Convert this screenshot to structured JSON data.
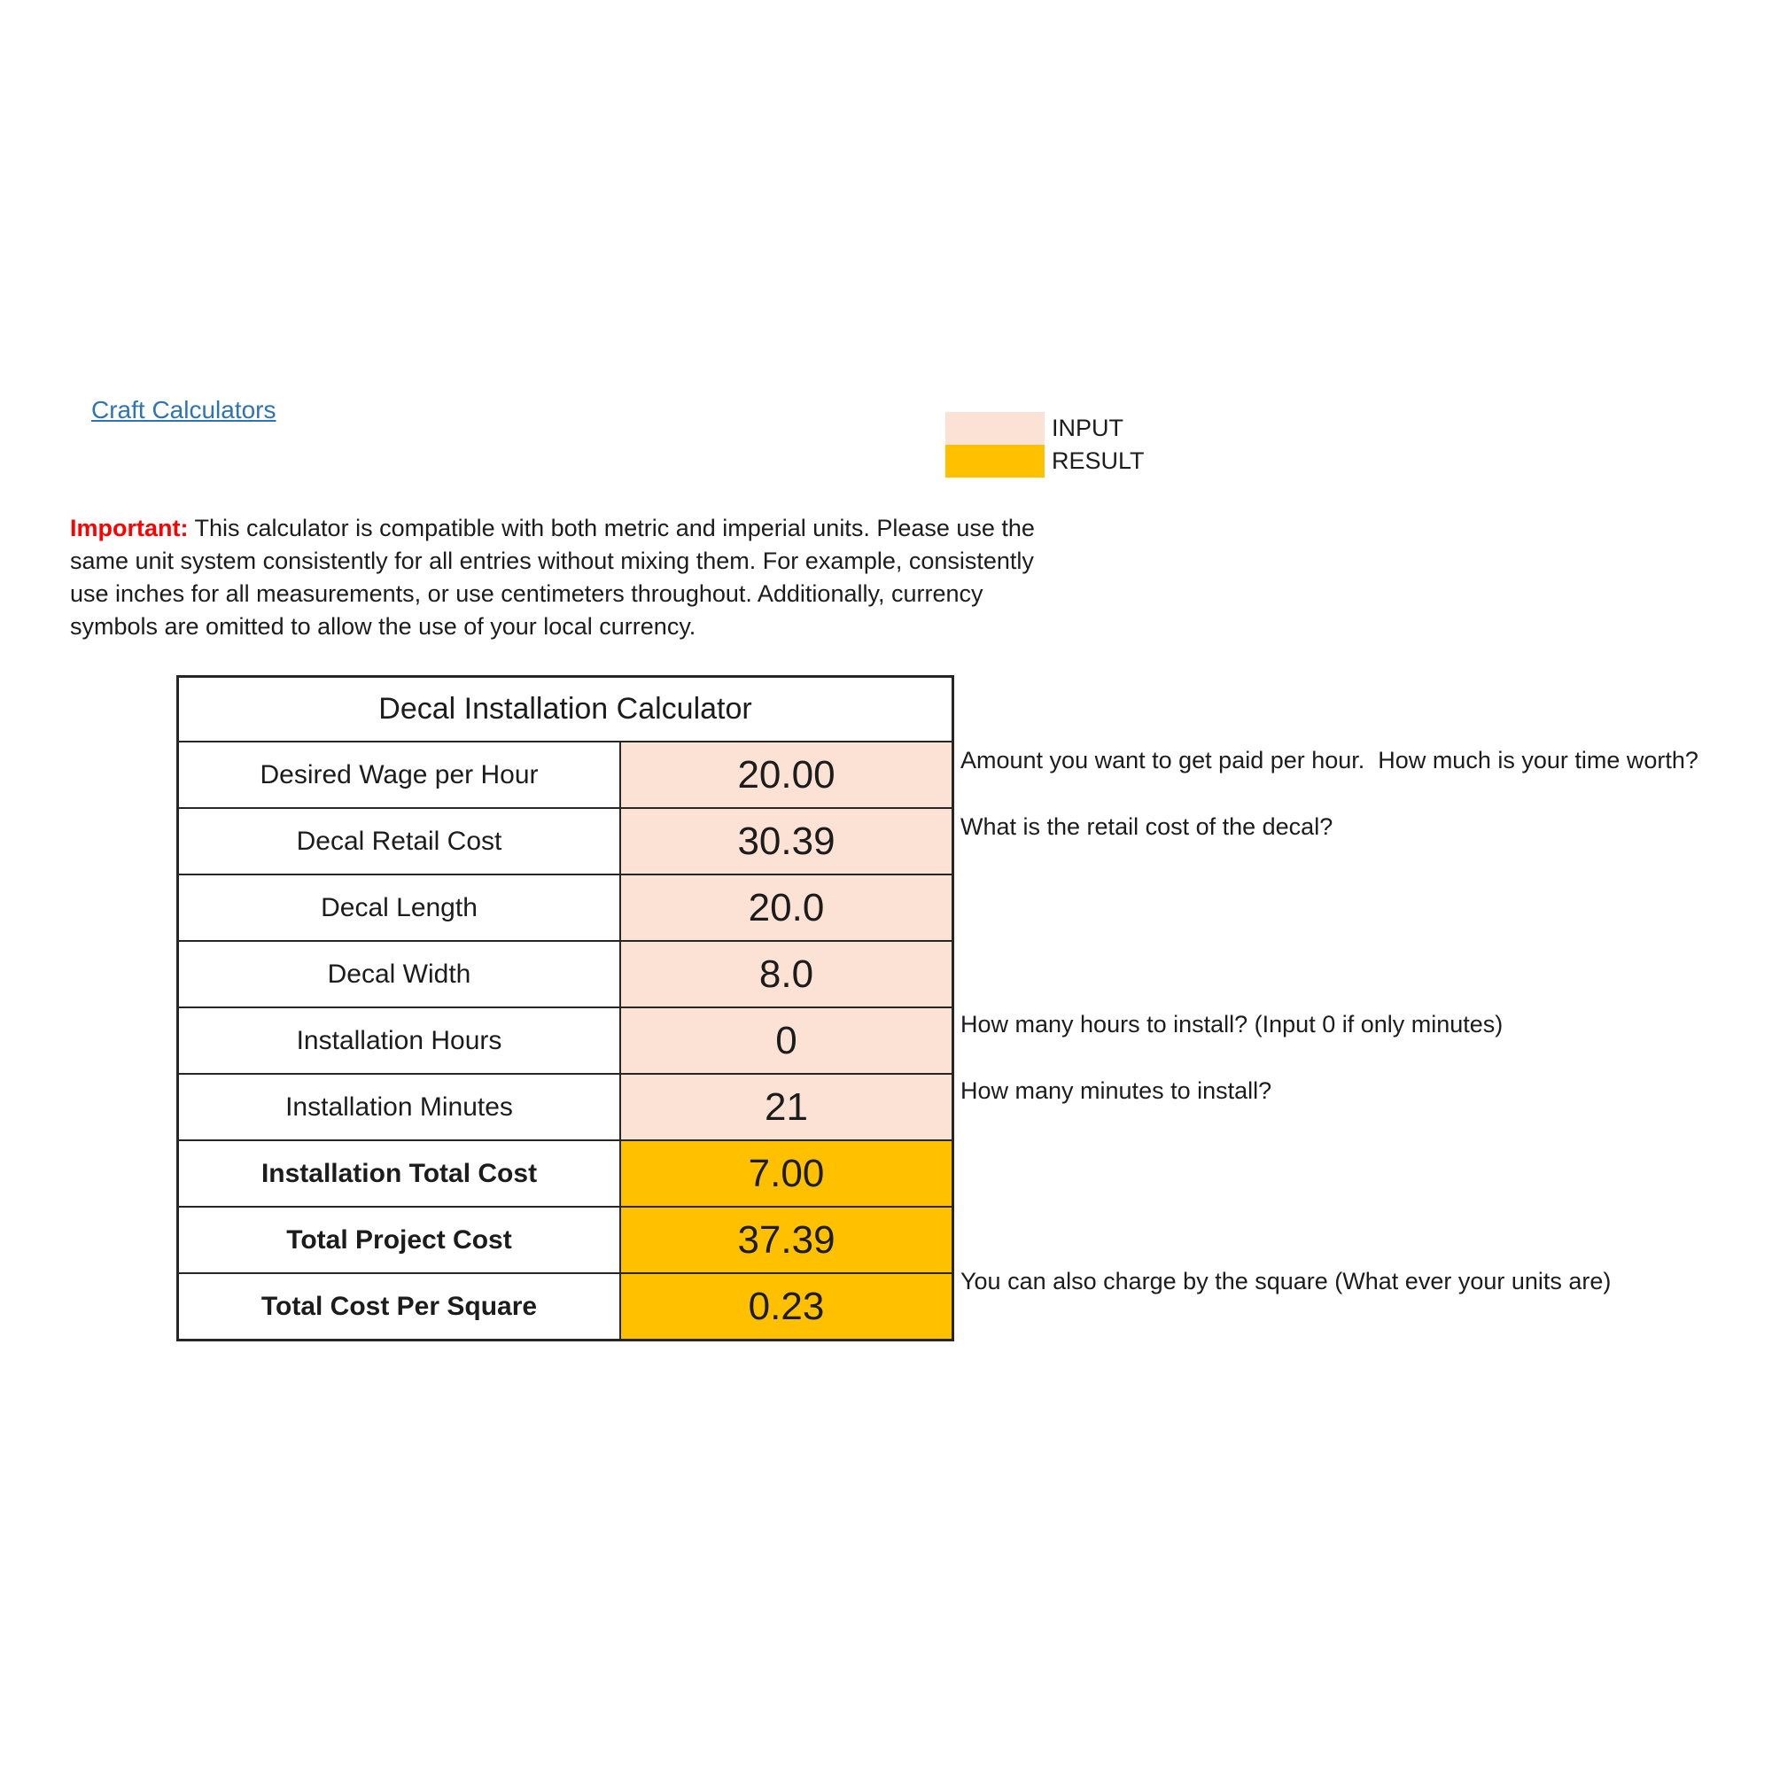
{
  "page": {
    "background": "#ffffff"
  },
  "link": {
    "label": "Craft Calculators",
    "color": "#2E74B5"
  },
  "legend": {
    "items": [
      {
        "label": "INPUT",
        "color": "#FBE2D5"
      },
      {
        "label": "RESULT",
        "color": "#FFC000"
      }
    ]
  },
  "notice": {
    "label": "Important:",
    "label_color": "#FF0000",
    "text": "This calculator is compatible with both metric and imperial units. Please use the\nsame unit system consistently for all entries without mixing them. For example, consistently\nuse inches for all measurements, or use centimeters throughout. Additionally, currency\nsymbols are omitted to allow the use of your local currency."
  },
  "calculator": {
    "title": "Decal Installation Calculator",
    "colors": {
      "input_fill": "#FBE2D5",
      "result_fill": "#FFC000"
    },
    "rows": [
      {
        "label": "Desired Wage per Hour",
        "value": "20.00",
        "type": "input",
        "note": "Amount you want to get paid per hour.  How much is your time worth?"
      },
      {
        "label": "Decal Retail Cost",
        "value": "30.39",
        "type": "input",
        "note": "What is the retail cost of the decal?"
      },
      {
        "label": "Decal Length",
        "value": "20.0",
        "type": "input",
        "note": ""
      },
      {
        "label": "Decal Width",
        "value": "8.0",
        "type": "input",
        "note": ""
      },
      {
        "label": "Installation Hours",
        "value": "0",
        "type": "input",
        "note": "How many hours to install? (Input 0 if only minutes)"
      },
      {
        "label": "Installation Minutes",
        "value": "21",
        "type": "input",
        "note": "How many minutes to install?"
      },
      {
        "label": "Installation Total Cost",
        "value": "7.00",
        "type": "result",
        "note": ""
      },
      {
        "label": "Total Project Cost",
        "value": "37.39",
        "type": "result",
        "note": ""
      },
      {
        "label": "Total Cost Per Square",
        "value": "0.23",
        "type": "result",
        "note": "You can also charge by the square (What ever your units are)"
      }
    ]
  }
}
